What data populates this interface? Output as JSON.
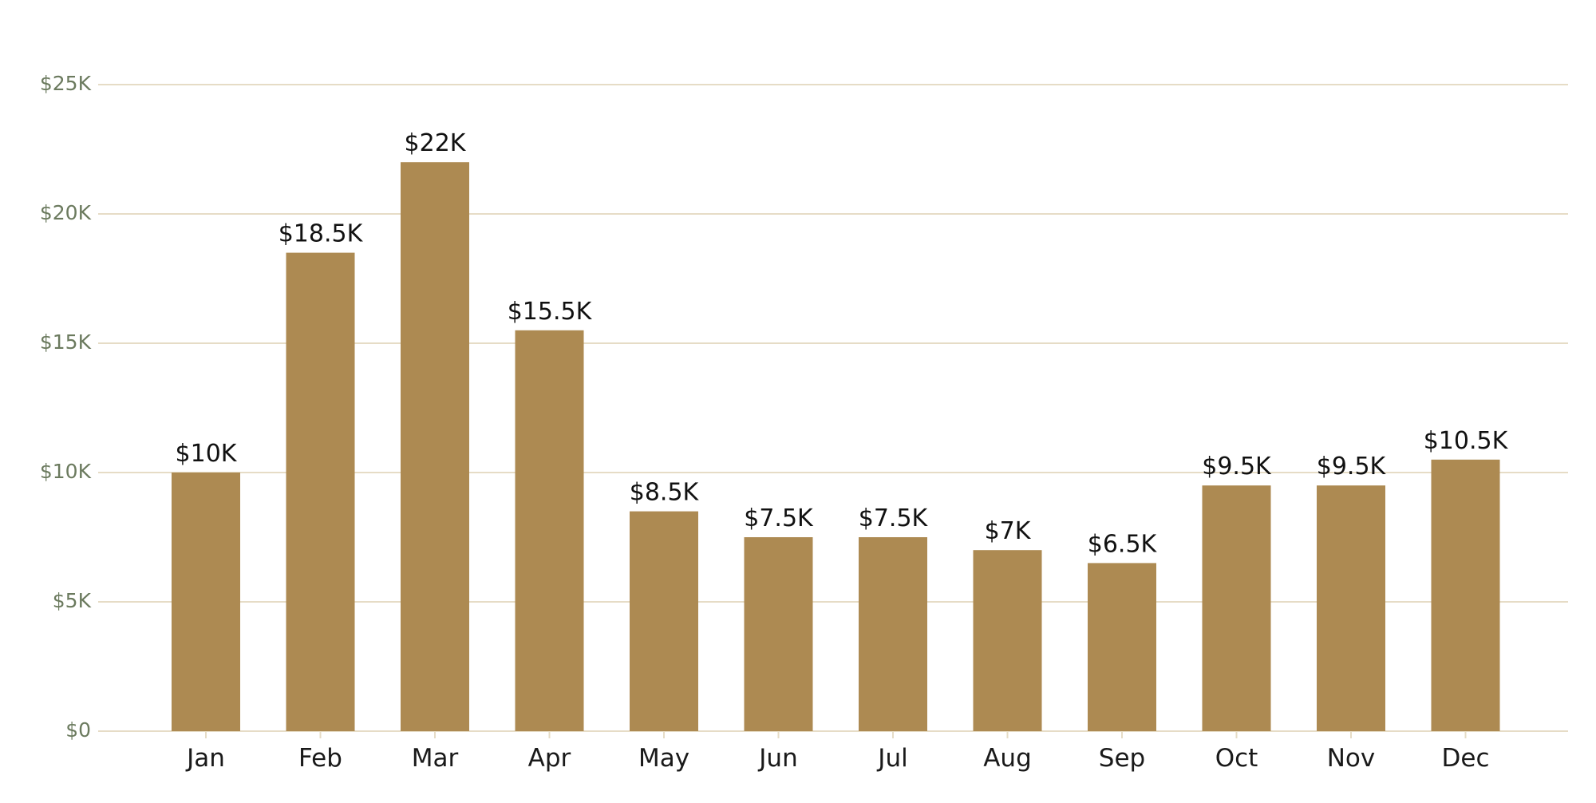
{
  "chart_data": {
    "type": "bar",
    "title": "",
    "xlabel": "",
    "ylabel": "",
    "categories": [
      "Jan",
      "Feb",
      "Mar",
      "Apr",
      "May",
      "Jun",
      "Jul",
      "Aug",
      "Sep",
      "Oct",
      "Nov",
      "Dec"
    ],
    "values": [
      10000,
      18500,
      22000,
      15500,
      8500,
      7500,
      7500,
      7000,
      6500,
      9500,
      9500,
      10500
    ],
    "value_labels": [
      "$10K",
      "$18.5K",
      "$22K",
      "$15.5K",
      "$8.5K",
      "$7.5K",
      "$7.5K",
      "$7K",
      "$6.5K",
      "$9.5K",
      "$9.5K",
      "$10.5K"
    ],
    "ylim": [
      0,
      25000
    ],
    "yticks": [
      0,
      5000,
      10000,
      15000,
      20000,
      25000
    ],
    "ytick_labels": [
      "$0",
      "$5K",
      "$10K",
      "$15K",
      "$20K",
      "$25K"
    ],
    "grid": "horizontal",
    "legend": "none",
    "colors": {
      "bar": "#ad8a52",
      "grid": "#e6dcc6",
      "y_tick_text": "#6b7a5e",
      "x_tick_text": "#1a1a1a"
    }
  }
}
